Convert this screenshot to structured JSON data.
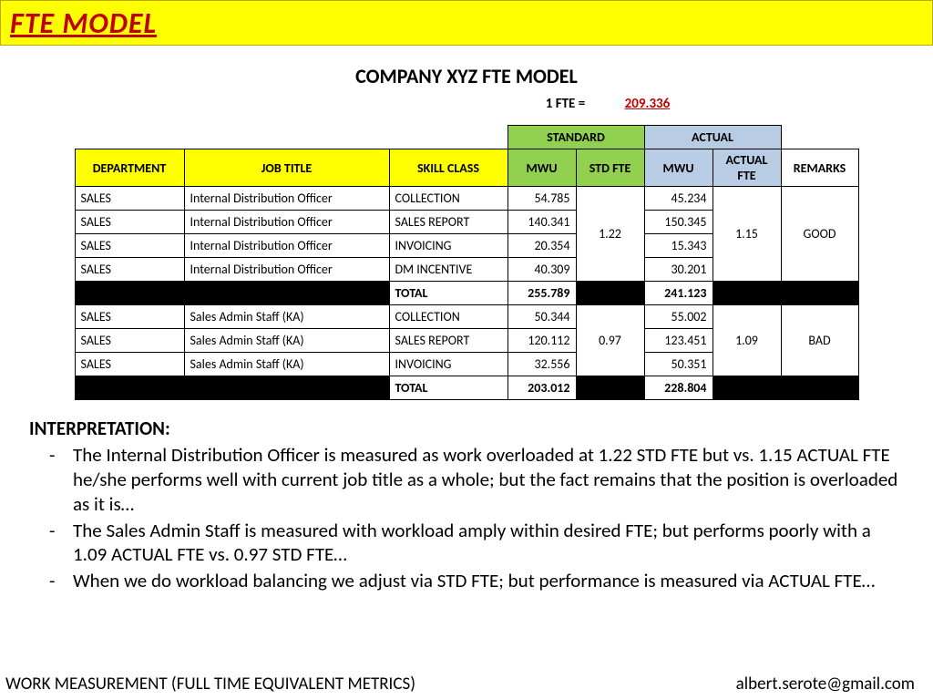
{
  "banner": {
    "title": "FTE MODEL"
  },
  "heading": {
    "subtitle": "COMPANY XYZ FTE MODEL",
    "fte_label": "1 FTE =",
    "fte_value": "209.336"
  },
  "table": {
    "group_headers": {
      "standard": "STANDARD",
      "actual": "ACTUAL"
    },
    "columns": {
      "dept": "DEPARTMENT",
      "job": "JOB TITLE",
      "skill": "SKILL CLASS",
      "mwu_s": "MWU",
      "stdfte": "STD FTE",
      "mwu_a": "MWU",
      "actfte": "ACTUAL FTE",
      "remarks": "REMARKS"
    },
    "group1": {
      "rows": [
        {
          "dept": "SALES",
          "job": "Internal Distribution Officer",
          "skill": "COLLECTION",
          "mwu_s": "54.785",
          "mwu_a": "45.234"
        },
        {
          "dept": "SALES",
          "job": "Internal Distribution Officer",
          "skill": "SALES REPORT",
          "mwu_s": "140.341",
          "mwu_a": "150.345"
        },
        {
          "dept": "SALES",
          "job": "Internal Distribution Officer",
          "skill": "INVOICING",
          "mwu_s": "20.354",
          "mwu_a": "15.343"
        },
        {
          "dept": "SALES",
          "job": "Internal Distribution Officer",
          "skill": "DM INCENTIVE",
          "mwu_s": "40.309",
          "mwu_a": "30.201"
        }
      ],
      "std_fte": "1.22",
      "act_fte": "1.15",
      "remarks": "GOOD",
      "total_label": "TOTAL",
      "total_s": "255.789",
      "total_a": "241.123"
    },
    "group2": {
      "rows": [
        {
          "dept": "SALES",
          "job": "Sales Admin Staff (KA)",
          "skill": "COLLECTION",
          "mwu_s": "50.344",
          "mwu_a": "55.002"
        },
        {
          "dept": "SALES",
          "job": "Sales Admin Staff (KA)",
          "skill": "SALES REPORT",
          "mwu_s": "120.112",
          "mwu_a": "123.451"
        },
        {
          "dept": "SALES",
          "job": "Sales Admin Staff (KA)",
          "skill": "INVOICING",
          "mwu_s": "32.556",
          "mwu_a": "50.351"
        }
      ],
      "std_fte": "0.97",
      "act_fte": "1.09",
      "remarks": "BAD",
      "total_label": "TOTAL",
      "total_s": "203.012",
      "total_a": "228.804"
    }
  },
  "interpretation": {
    "title": "INTERPRETATION:",
    "bullets": [
      "The Internal Distribution Officer is measured as work overloaded at 1.22 STD FTE but vs. 1.15 ACTUAL FTE he/she performs well with current job title as a whole; but the fact remains that the position is overloaded as it is…",
      "The Sales Admin Staff is measured with workload amply within desired FTE; but performs poorly with a 1.09 ACTUAL FTE vs. 0.97 STD FTE…",
      "When we do workload balancing we adjust via STD FTE; but performance is measured via ACTUAL FTE…"
    ]
  },
  "footer": {
    "left": "WORK MEASUREMENT (FULL TIME EQUIVALENT METRICS)",
    "right": "albert.serote@gmail.com"
  },
  "colors": {
    "banner_bg": "#ffff00",
    "banner_text": "#c00000",
    "std_bg": "#92d050",
    "act_bg": "#b8cce4",
    "yellow": "#ffff00",
    "black": "#000000"
  }
}
